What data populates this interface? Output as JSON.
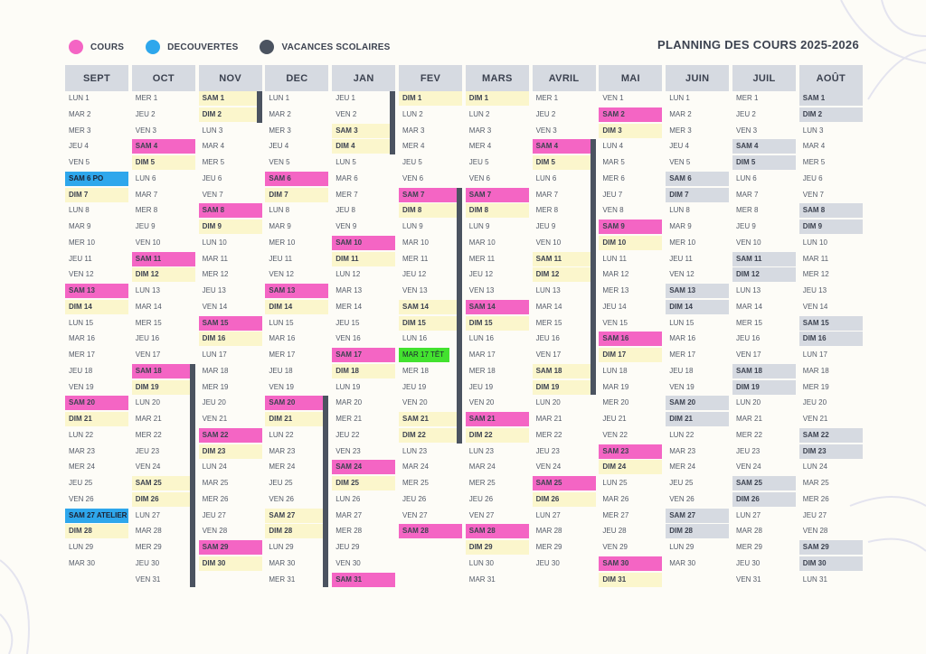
{
  "legend": [
    {
      "label": "COURS",
      "color": "#f465c4",
      "icon": "cours-dot-icon"
    },
    {
      "label": "DECOUVERTES",
      "color": "#2ea7ec",
      "icon": "decouvertes-dot-icon"
    },
    {
      "label": "VACANCES SCOLAIRES",
      "color": "#4b5360",
      "icon": "vacances-dot-icon"
    }
  ],
  "title": "PLANNING DES COURS 2025-2026",
  "colors": {
    "cours": "#f465c4",
    "decouvertes": "#2ea7ec",
    "vacances": "#4b5360",
    "weekend": "#fbf6cc",
    "header": "#d6dae1",
    "tet": "#43e22f"
  },
  "months": [
    {
      "name": "SEPT",
      "days": [
        "LUN 1",
        "MAR 2",
        "MER 3",
        "JEU 4",
        "VEN 5",
        "SAM 6 PO",
        "DIM 7",
        "LUN 8",
        "MAR 9",
        "MER 10",
        "JEU 11",
        "VEN 12",
        "SAM 13",
        "DIM 14",
        "LUN 15",
        "MAR 16",
        "MER 17",
        "JEU 18",
        "VEN 19",
        "SAM 20",
        "DIM 21",
        "LUN 22",
        "MAR 23",
        "MER 24",
        "JEU 25",
        "VEN 26",
        "SAM 27 ATELIER",
        "DIM 28",
        "LUN 29",
        "MAR 30"
      ],
      "cours": [
        13,
        20
      ],
      "decouvertes": [
        6,
        27
      ],
      "vacances": [],
      "vacbars": []
    },
    {
      "name": "OCT",
      "days": [
        "MER 1",
        "JEU 2",
        "VEN 3",
        "SAM 4",
        "DIM 5",
        "LUN 6",
        "MAR 7",
        "MER 8",
        "JEU 9",
        "VEN 10",
        "SAM 11",
        "DIM 12",
        "LUN 13",
        "MAR 14",
        "MER 15",
        "JEU 16",
        "VEN 17",
        "SAM 18",
        "DIM 19",
        "LUN 20",
        "MAR 21",
        "MER 22",
        "JEU 23",
        "VEN 24",
        "SAM 25",
        "DIM 26",
        "LUN 27",
        "MAR 28",
        "MER 29",
        "JEU 30",
        "VEN 31"
      ],
      "cours": [
        4,
        11,
        18
      ],
      "decouvertes": [],
      "vacances": [],
      "vacbars": [
        [
          18,
          31
        ]
      ]
    },
    {
      "name": "NOV",
      "days": [
        "SAM 1",
        "DIM 2",
        "LUN 3",
        "MAR 4",
        "MER 5",
        "JEU 6",
        "VEN 7",
        "SAM 8",
        "DIM 9",
        "LUN 10",
        "MAR 11",
        "MER 12",
        "JEU 13",
        "VEN 14",
        "SAM 15",
        "DIM 16",
        "LUN 17",
        "MAR 18",
        "MER 19",
        "JEU 20",
        "VEN 21",
        "SAM 22",
        "DIM 23",
        "LUN 24",
        "MAR 25",
        "MER 26",
        "JEU 27",
        "VEN 28",
        "SAM 29",
        "DIM 30"
      ],
      "cours": [
        8,
        15,
        22,
        29
      ],
      "decouvertes": [],
      "vacances": [],
      "vacbars": [
        [
          1,
          2
        ]
      ]
    },
    {
      "name": "DEC",
      "days": [
        "LUN 1",
        "MAR 2",
        "MER 3",
        "JEU 4",
        "VEN 5",
        "SAM 6",
        "DIM 7",
        "LUN 8",
        "MAR 9",
        "MER 10",
        "JEU 11",
        "VEN 12",
        "SAM 13",
        "DIM 14",
        "LUN 15",
        "MAR 16",
        "MER 17",
        "JEU 18",
        "VEN 19",
        "SAM 20",
        "DIM 21",
        "LUN 22",
        "MAR 23",
        "MER 24",
        "JEU 25",
        "VEN 26",
        "SAM 27",
        "DIM 28",
        "LUN 29",
        "MAR 30",
        "MER 31"
      ],
      "cours": [
        6,
        13,
        20
      ],
      "decouvertes": [],
      "vacances": [],
      "vacbars": [
        [
          20,
          31
        ]
      ]
    },
    {
      "name": "JAN",
      "days": [
        "JEU 1",
        "VEN 2",
        "SAM 3",
        "DIM 4",
        "LUN 5",
        "MAR 6",
        "MER 7",
        "JEU 8",
        "VEN 9",
        "SAM 10",
        "DIM 11",
        "LUN 12",
        "MAR 13",
        "MER 14",
        "JEU 15",
        "VEN 16",
        "SAM 17",
        "DIM 18",
        "LUN 19",
        "MAR 20",
        "MER 21",
        "JEU 22",
        "VEN 23",
        "SAM 24",
        "DIM 25",
        "LUN 26",
        "MAR 27",
        "MER 28",
        "JEU 29",
        "VEN 30",
        "SAM 31"
      ],
      "cours": [
        10,
        17,
        24,
        31
      ],
      "decouvertes": [],
      "vacances": [],
      "vacbars": [
        [
          1,
          4
        ]
      ]
    },
    {
      "name": "FEV",
      "days": [
        "DIM 1",
        "LUN 2",
        "MAR 3",
        "MER 4",
        "JEU 5",
        "VEN 6",
        "SAM 7",
        "DIM 8",
        "LUN 9",
        "MAR 10",
        "MER 11",
        "JEU 12",
        "VEN 13",
        "SAM 14",
        "DIM 15",
        "LUN 16",
        "MAR 17 TÊT",
        "MER 18",
        "JEU 19",
        "VEN 20",
        "SAM 21",
        "DIM 22",
        "LUN 23",
        "MAR 24",
        "MER 25",
        "JEU 26",
        "VEN 27",
        "SAM 28"
      ],
      "cours": [
        7,
        28
      ],
      "decouvertes": [],
      "vacances": [],
      "tet": [
        17
      ],
      "vacbars": [
        [
          7,
          22
        ]
      ]
    },
    {
      "name": "MARS",
      "days": [
        "DIM 1",
        "LUN 2",
        "MAR 3",
        "MER 4",
        "JEU 5",
        "VEN 6",
        "SAM 7",
        "DIM 8",
        "LUN 9",
        "MAR 10",
        "MER 11",
        "JEU 12",
        "VEN 13",
        "SAM 14",
        "DIM 15",
        "LUN 16",
        "MAR 17",
        "MER 18",
        "JEU 19",
        "VEN 20",
        "SAM 21",
        "DIM 22",
        "LUN 23",
        "MAR 24",
        "MER 25",
        "JEU 26",
        "VEN 27",
        "SAM 28",
        "DIM 29",
        "LUN 30",
        "MAR 31"
      ],
      "cours": [
        7,
        14,
        21,
        28
      ],
      "decouvertes": [],
      "vacances": [],
      "vacbars": []
    },
    {
      "name": "AVRIL",
      "days": [
        "MER 1",
        "JEU 2",
        "VEN 3",
        "SAM 4",
        "DIM 5",
        "LUN 6",
        "MAR 7",
        "MER 8",
        "JEU 9",
        "VEN 10",
        "SAM 11",
        "DIM 12",
        "LUN 13",
        "MAR 14",
        "MER 15",
        "JEU 16",
        "VEN 17",
        "SAM 18",
        "DIM 19",
        "LUN 20",
        "MAR 21",
        "MER 22",
        "JEU 23",
        "VEN 24",
        "SAM 25",
        "DIM 26",
        "LUN 27",
        "MAR 28",
        "MER 29",
        "JEU 30"
      ],
      "cours": [
        4,
        25
      ],
      "decouvertes": [],
      "vacances": [],
      "vacbars": [
        [
          4,
          19
        ]
      ]
    },
    {
      "name": "MAI",
      "days": [
        "VEN 1",
        "SAM 2",
        "DIM 3",
        "LUN 4",
        "MAR 5",
        "MER 6",
        "JEU 7",
        "VEN 8",
        "SAM 9",
        "DIM 10",
        "LUN 11",
        "MAR 12",
        "MER 13",
        "JEU 14",
        "VEN 15",
        "SAM 16",
        "DIM 17",
        "LUN 18",
        "MAR 19",
        "MER 20",
        "JEU 21",
        "VEN 22",
        "SAM 23",
        "DIM 24",
        "LUN 25",
        "MAR 26",
        "MER 27",
        "JEU 28",
        "VEN 29",
        "SAM 30",
        "DIM 31"
      ],
      "cours": [
        2,
        9,
        16,
        23,
        30
      ],
      "decouvertes": [],
      "vacances": [],
      "vacbars": []
    },
    {
      "name": "JUIN",
      "days": [
        "LUN 1",
        "MAR 2",
        "MER 3",
        "JEU 4",
        "VEN 5",
        "SAM 6",
        "DIM 7",
        "LUN 8",
        "MAR 9",
        "MER 10",
        "JEU 11",
        "VEN 12",
        "SAM 13",
        "DIM 14",
        "LUN 15",
        "MAR 16",
        "MER 17",
        "JEU 18",
        "VEN 19",
        "SAM 20",
        "DIM 21",
        "LUN 22",
        "MAR 23",
        "MER 24",
        "JEU 25",
        "VEN 26",
        "SAM 27",
        "DIM 28",
        "LUN 29",
        "MAR 30"
      ],
      "cours": [],
      "decouvertes": [],
      "vacances": [
        6,
        7,
        13,
        14,
        20,
        21,
        27,
        28
      ],
      "vacbars": []
    },
    {
      "name": "JUIL",
      "days": [
        "MER 1",
        "JEU 2",
        "VEN 3",
        "SAM 4",
        "DIM 5",
        "LUN 6",
        "MAR 7",
        "MER 8",
        "JEU 9",
        "VEN 10",
        "SAM 11",
        "DIM 12",
        "LUN 13",
        "MAR 14",
        "MER 15",
        "JEU 16",
        "VEN 17",
        "SAM 18",
        "DIM 19",
        "LUN 20",
        "MAR 21",
        "MER 22",
        "JEU 23",
        "VEN 24",
        "SAM 25",
        "DIM 26",
        "LUN 27",
        "MAR 28",
        "MER 29",
        "JEU 30",
        "VEN 31"
      ],
      "cours": [],
      "decouvertes": [],
      "vacances": [
        4,
        5,
        11,
        12,
        18,
        19,
        25,
        26
      ],
      "vacbars": []
    },
    {
      "name": "AOÛT",
      "days": [
        "SAM 1",
        "DIM 2",
        "LUN 3",
        "MAR 4",
        "MER 5",
        "JEU 6",
        "VEN 7",
        "SAM 8",
        "DIM 9",
        "LUN 10",
        "MAR 11",
        "MER 12",
        "JEU 13",
        "VEN 14",
        "SAM 15",
        "DIM 16",
        "LUN 17",
        "MAR 18",
        "MER 19",
        "JEU 20",
        "VEN 21",
        "SAM 22",
        "DIM 23",
        "LUN 24",
        "MAR 25",
        "MER 26",
        "JEU 27",
        "VEN 28",
        "SAM 29",
        "DIM 30",
        "LUN 31"
      ],
      "cours": [],
      "decouvertes": [],
      "vacances": [
        1,
        2,
        8,
        9,
        15,
        16,
        22,
        23,
        29,
        30
      ],
      "vacbars": []
    }
  ]
}
